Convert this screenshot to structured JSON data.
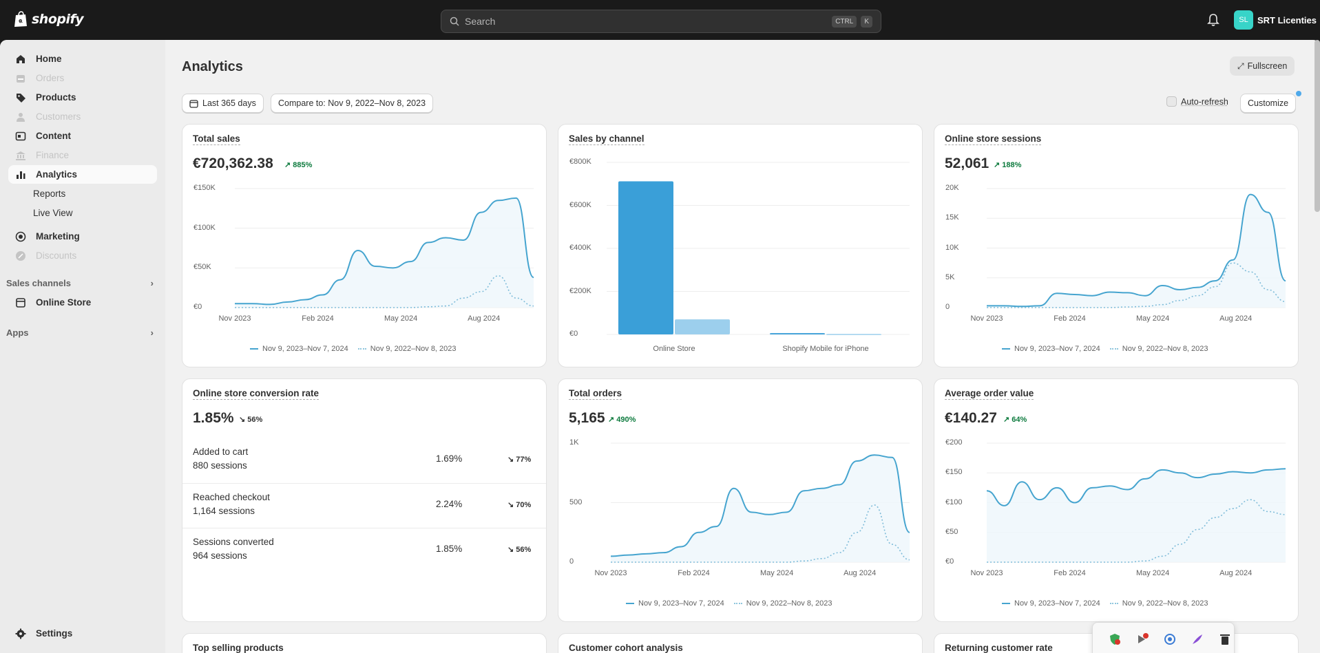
{
  "header": {
    "brand": "shopify",
    "search_placeholder": "Search",
    "kbd_ctrl": "CTRL",
    "kbd_k": "K",
    "store_initials": "SL",
    "store_name": "SRT Licenties"
  },
  "sidebar": {
    "items": [
      {
        "label": "Home",
        "icon": "home-icon",
        "state": "normal"
      },
      {
        "label": "Orders",
        "icon": "orders-icon",
        "state": "disabled"
      },
      {
        "label": "Products",
        "icon": "tag-icon",
        "state": "normal"
      },
      {
        "label": "Customers",
        "icon": "person-icon",
        "state": "disabled"
      },
      {
        "label": "Content",
        "icon": "content-icon",
        "state": "normal"
      },
      {
        "label": "Finance",
        "icon": "bank-icon",
        "state": "disabled"
      },
      {
        "label": "Analytics",
        "icon": "chart-icon",
        "state": "active"
      },
      {
        "label": "Reports",
        "state": "sub"
      },
      {
        "label": "Live View",
        "state": "sub"
      },
      {
        "label": "Marketing",
        "icon": "target-icon",
        "state": "normal"
      },
      {
        "label": "Discounts",
        "icon": "discount-icon",
        "state": "disabled"
      }
    ],
    "sales_channels_label": "Sales channels",
    "online_store_label": "Online Store",
    "apps_label": "Apps",
    "settings_label": "Settings"
  },
  "page": {
    "title": "Analytics",
    "fullscreen_label": "Fullscreen",
    "date_range_label": "Last 365 days",
    "compare_label": "Compare to: Nov 9, 2022–Nov 8, 2023",
    "auto_refresh_label": "Auto-refresh",
    "customize_label": "Customize"
  },
  "legend": {
    "current": "Nov 9, 2023–Nov 7, 2024",
    "previous": "Nov 9, 2022–Nov 8, 2023"
  },
  "x_ticks": [
    "Nov 2023",
    "Feb 2024",
    "May 2024",
    "Aug 2024"
  ],
  "colors": {
    "line": "#45a4cf",
    "bar_current": "#3a9fd8",
    "bar_previous": "#9ccfed",
    "up": "#0c7a3d"
  },
  "cards": {
    "total_sales": {
      "title": "Total sales",
      "value": "€720,362.38",
      "change": "885%",
      "direction": "up"
    },
    "sales_by_channel": {
      "title": "Sales by channel"
    },
    "sessions": {
      "title": "Online store sessions",
      "value": "52,061",
      "change": "188%",
      "direction": "up"
    },
    "conversion": {
      "title": "Online store conversion rate",
      "value": "1.85%",
      "change": "56%",
      "direction": "down",
      "rows": [
        {
          "label": "Added to cart",
          "sub": "880 sessions",
          "pct": "1.69%",
          "change": "77%"
        },
        {
          "label": "Reached checkout",
          "sub": "1,164 sessions",
          "pct": "2.24%",
          "change": "70%"
        },
        {
          "label": "Sessions converted",
          "sub": "964 sessions",
          "pct": "1.85%",
          "change": "56%"
        }
      ]
    },
    "total_orders": {
      "title": "Total orders",
      "value": "5,165",
      "change": "490%",
      "direction": "up"
    },
    "aov": {
      "title": "Average order value",
      "value": "€140.27",
      "change": "64%",
      "direction": "up"
    },
    "bottom": [
      "Top selling products",
      "Customer cohort analysis",
      "Returning customer rate"
    ]
  },
  "chart_data": [
    {
      "type": "line",
      "id": "total_sales",
      "ylabels": [
        "€0",
        "€50K",
        "€100K",
        "€150K"
      ],
      "ylim": [
        0,
        150000
      ],
      "series": [
        {
          "name": "Nov 9, 2023–Nov 7, 2024",
          "values": [
            5000,
            5000,
            4000,
            7000,
            10000,
            16000,
            35000,
            72000,
            52000,
            50000,
            58000,
            82000,
            88000,
            85000,
            120000,
            135000,
            138000,
            38000
          ]
        },
        {
          "name": "Nov 9, 2022–Nov 8, 2023",
          "values": [
            0,
            0,
            0,
            0,
            0,
            0,
            0,
            0,
            0,
            0,
            0,
            1000,
            2000,
            12000,
            20000,
            40000,
            12000,
            2000
          ]
        }
      ]
    },
    {
      "type": "bar",
      "id": "sales_by_channel",
      "categories": [
        "Online Store",
        "Shopify Mobile for iPhone"
      ],
      "ylabels": [
        "€0",
        "€200K",
        "€400K",
        "€600K",
        "€800K"
      ],
      "ylim": [
        0,
        800000
      ],
      "series": [
        {
          "name": "Nov 9, 2023–Nov 7, 2024",
          "values": [
            712000,
            6000
          ]
        },
        {
          "name": "Nov 9, 2022–Nov 8, 2023",
          "values": [
            70000,
            2000
          ]
        }
      ]
    },
    {
      "type": "line",
      "id": "sessions",
      "ylabels": [
        "0",
        "5K",
        "10K",
        "15K",
        "20K"
      ],
      "ylim": [
        0,
        20000
      ],
      "series": [
        {
          "name": "Nov 9, 2023–Nov 7, 2024",
          "values": [
            300,
            300,
            200,
            300,
            2400,
            2200,
            2000,
            2600,
            2500,
            2000,
            3700,
            3000,
            3400,
            4500,
            8000,
            19000,
            16000,
            4500
          ]
        },
        {
          "name": "Nov 9, 2022–Nov 8, 2023",
          "values": [
            0,
            0,
            0,
            0,
            0,
            0,
            0,
            0,
            100,
            200,
            500,
            1200,
            2000,
            3500,
            7500,
            6000,
            3000,
            1000
          ]
        }
      ]
    },
    {
      "type": "line",
      "id": "total_orders",
      "ylabels": [
        "0",
        "500",
        "1K"
      ],
      "ylim": [
        0,
        1000
      ],
      "series": [
        {
          "name": "Nov 9, 2023–Nov 7, 2024",
          "values": [
            50,
            60,
            70,
            80,
            130,
            250,
            300,
            620,
            420,
            400,
            420,
            600,
            620,
            650,
            850,
            900,
            880,
            250
          ]
        },
        {
          "name": "Nov 9, 2022–Nov 8, 2023",
          "values": [
            0,
            0,
            0,
            0,
            0,
            0,
            0,
            0,
            0,
            0,
            0,
            10,
            30,
            80,
            250,
            480,
            150,
            20
          ]
        }
      ]
    },
    {
      "type": "line",
      "id": "aov",
      "ylabels": [
        "€0",
        "€50",
        "€100",
        "€150",
        "€200"
      ],
      "ylim": [
        0,
        200
      ],
      "series": [
        {
          "name": "Nov 9, 2023–Nov 7, 2024",
          "values": [
            120,
            95,
            135,
            105,
            125,
            100,
            125,
            128,
            122,
            140,
            155,
            150,
            142,
            148,
            152,
            150,
            155,
            157
          ]
        },
        {
          "name": "Nov 9, 2022–Nov 8, 2023",
          "values": [
            0,
            0,
            0,
            0,
            0,
            0,
            0,
            0,
            0,
            2,
            10,
            30,
            55,
            75,
            90,
            105,
            85,
            80
          ]
        }
      ]
    }
  ],
  "tray": {
    "icons": [
      "shield-check-icon",
      "notification-off-icon",
      "network-icon",
      "feather-icon",
      "trash-icon",
      "security-warning-icon",
      "bluetooth-icon"
    ]
  }
}
